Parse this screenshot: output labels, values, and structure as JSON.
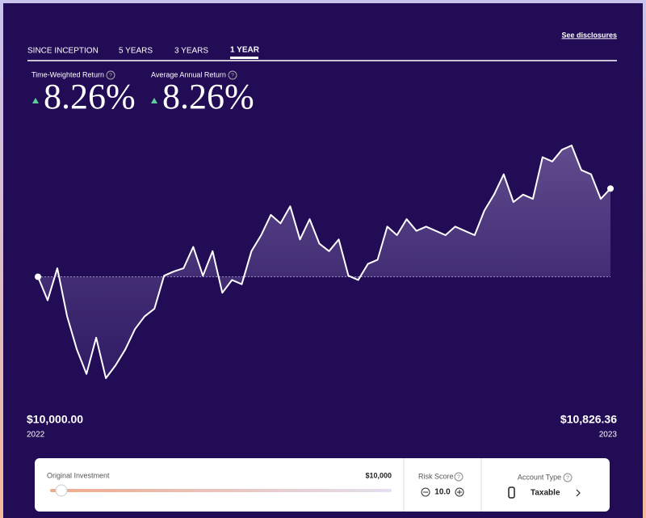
{
  "tabs": [
    "SINCE INCEPTION",
    "5 YEARS",
    "3 YEARS",
    "1 YEAR"
  ],
  "disclosures": "See disclosures",
  "returns": [
    {
      "label": "Time-Weighted Return",
      "value": "8.26%"
    },
    {
      "label": "Average Annual Return",
      "value": "8.26%"
    }
  ],
  "chart_data": {
    "type": "line",
    "color": "#ffffff",
    "values": [
      10000,
      9780,
      10080,
      9630,
      9320,
      9090,
      9430,
      9050,
      9170,
      9320,
      9510,
      9630,
      9700,
      10010,
      10050,
      10080,
      10280,
      10010,
      10240,
      9850,
      9970,
      9930,
      10240,
      10390,
      10580,
      10500,
      10660,
      10350,
      10540,
      10310,
      10240,
      10350,
      10010,
      9970,
      10120,
      10160,
      10470,
      10390,
      10540,
      10430,
      10470,
      10430,
      10390,
      10470,
      10430,
      10390,
      10620,
      10770,
      10960,
      10700,
      10770,
      10730,
      11120,
      11080,
      11190,
      11230,
      11000,
      10960,
      10730,
      10826.36
    ],
    "start_label": "$10,000.00",
    "start_year": "2022",
    "end_label": "$10,826.36",
    "end_year": "2023"
  },
  "controls": {
    "investment_label": "Original Investment",
    "investment_value": "$10,000",
    "risk_label": "Risk Score",
    "risk_value": "10.0",
    "account_label": "Account Type",
    "account_value": "Taxable"
  }
}
